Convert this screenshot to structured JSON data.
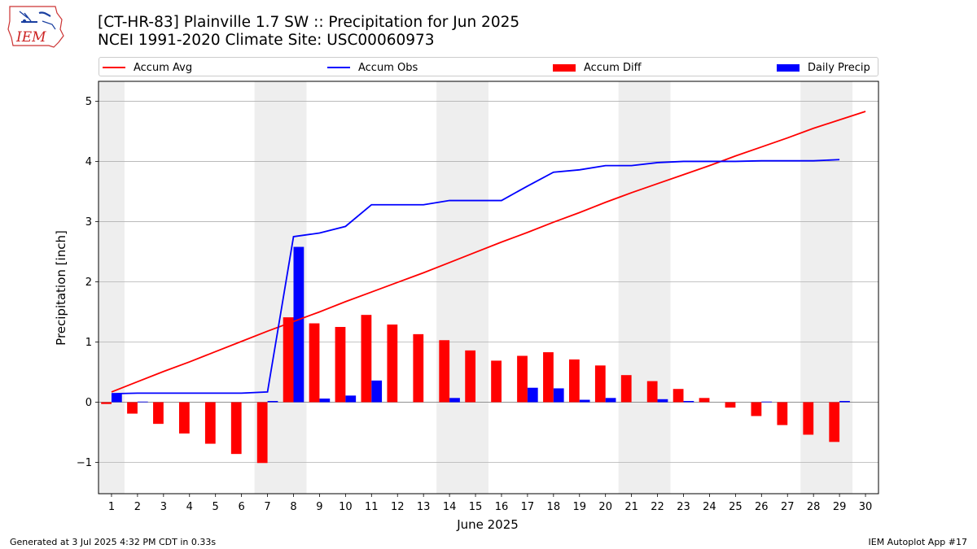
{
  "header": {
    "title_line1": "[CT-HR-83] Plainville 1.7 SW :: Precipitation for Jun 2025",
    "title_line2": "NCEI 1991-2020 Climate Site: USC00060973",
    "logo_text": "IEM"
  },
  "legend": {
    "placement": "top, above plot",
    "items": [
      {
        "label": "Accum Avg",
        "kind": "line",
        "color": "#ff0000"
      },
      {
        "label": "Accum Obs",
        "kind": "line",
        "color": "#0000ff"
      },
      {
        "label": "Accum Diff",
        "kind": "bar",
        "color": "#ff0000"
      },
      {
        "label": "Daily Precip",
        "kind": "bar",
        "color": "#0000ff"
      }
    ]
  },
  "chart_data": {
    "type": "bar",
    "title": "[CT-HR-83] Plainville 1.7 SW :: Precipitation for Jun 2025",
    "subtitle": "NCEI 1991-2020 Climate Site: USC00060973",
    "xlabel": "June 2025",
    "ylabel": "Precipitation [inch]",
    "xlim": [
      0.5,
      30.5
    ],
    "ylim": [
      -1.52,
      5.33
    ],
    "grid": "horizontal",
    "x": [
      1,
      2,
      3,
      4,
      5,
      6,
      7,
      8,
      9,
      10,
      11,
      12,
      13,
      14,
      15,
      16,
      17,
      18,
      19,
      20,
      21,
      22,
      23,
      24,
      25,
      26,
      27,
      28,
      29,
      30
    ],
    "x_ticks": [
      1,
      2,
      3,
      4,
      5,
      6,
      7,
      8,
      9,
      10,
      11,
      12,
      13,
      14,
      15,
      16,
      17,
      18,
      19,
      20,
      21,
      22,
      23,
      24,
      25,
      26,
      27,
      28,
      29,
      30
    ],
    "y_ticks": [
      -1,
      0,
      1,
      2,
      3,
      4,
      5
    ],
    "y_tick_labels": [
      "−1",
      "0",
      "1",
      "2",
      "3",
      "4",
      "5"
    ],
    "weekend_shading": [
      [
        0.5,
        1.5
      ],
      [
        6.5,
        8.5
      ],
      [
        13.5,
        15.5
      ],
      [
        20.5,
        22.5
      ],
      [
        27.5,
        29.5
      ]
    ],
    "series": [
      {
        "name": "Accum Avg",
        "kind": "line",
        "color": "#ff0000",
        "x": [
          1,
          2,
          3,
          4,
          5,
          6,
          7,
          8,
          9,
          10,
          11,
          12,
          13,
          14,
          15,
          16,
          17,
          18,
          19,
          20,
          21,
          22,
          23,
          24,
          25,
          26,
          27,
          28,
          29,
          30
        ],
        "values": [
          0.17,
          0.34,
          0.51,
          0.67,
          0.84,
          1.01,
          1.18,
          1.34,
          1.5,
          1.67,
          1.83,
          1.99,
          2.15,
          2.32,
          2.49,
          2.66,
          2.82,
          2.99,
          3.15,
          3.32,
          3.48,
          3.63,
          3.78,
          3.93,
          4.09,
          4.24,
          4.39,
          4.55,
          4.69,
          4.83
        ]
      },
      {
        "name": "Accum Obs",
        "kind": "line",
        "color": "#0000ff",
        "x": [
          1,
          2,
          3,
          4,
          5,
          6,
          7,
          8,
          9,
          10,
          11,
          12,
          13,
          14,
          15,
          16,
          17,
          18,
          19,
          20,
          21,
          22,
          23,
          24,
          25,
          26,
          27,
          28,
          29
        ],
        "values": [
          0.14,
          0.15,
          0.15,
          0.15,
          0.15,
          0.15,
          0.17,
          2.75,
          2.81,
          2.92,
          3.28,
          3.28,
          3.28,
          3.35,
          3.35,
          3.35,
          3.59,
          3.82,
          3.86,
          3.93,
          3.93,
          3.98,
          4.0,
          4.0,
          4.0,
          4.01,
          4.01,
          4.01,
          4.03
        ]
      },
      {
        "name": "Accum Diff",
        "kind": "bar",
        "color": "#ff0000",
        "x": [
          1,
          2,
          3,
          4,
          5,
          6,
          7,
          8,
          9,
          10,
          11,
          12,
          13,
          14,
          15,
          16,
          17,
          18,
          19,
          20,
          21,
          22,
          23,
          24,
          25,
          26,
          27,
          28,
          29
        ],
        "values": [
          -0.03,
          -0.19,
          -0.36,
          -0.52,
          -0.69,
          -0.86,
          -1.01,
          1.41,
          1.31,
          1.25,
          1.45,
          1.29,
          1.13,
          1.03,
          0.86,
          0.69,
          0.77,
          0.83,
          0.71,
          0.61,
          0.45,
          0.35,
          0.22,
          0.07,
          -0.09,
          -0.23,
          -0.38,
          -0.54,
          -0.66
        ]
      },
      {
        "name": "Daily Precip",
        "kind": "bar",
        "color": "#0000ff",
        "x": [
          1,
          2,
          3,
          4,
          5,
          6,
          7,
          8,
          9,
          10,
          11,
          12,
          13,
          14,
          15,
          16,
          17,
          18,
          19,
          20,
          21,
          22,
          23,
          24,
          25,
          26,
          27,
          28,
          29
        ],
        "values": [
          0.14,
          0.01,
          0,
          0,
          0,
          0,
          0.02,
          2.58,
          0.06,
          0.11,
          0.36,
          0,
          0,
          0.07,
          0,
          0,
          0.24,
          0.23,
          0.04,
          0.07,
          0,
          0.05,
          0.02,
          0,
          0,
          0.01,
          0,
          0,
          0.02
        ]
      }
    ]
  },
  "footer": {
    "left": "Generated at 3 Jul 2025 4:32 PM CDT in 0.33s",
    "right": "IEM Autoplot App #17"
  }
}
